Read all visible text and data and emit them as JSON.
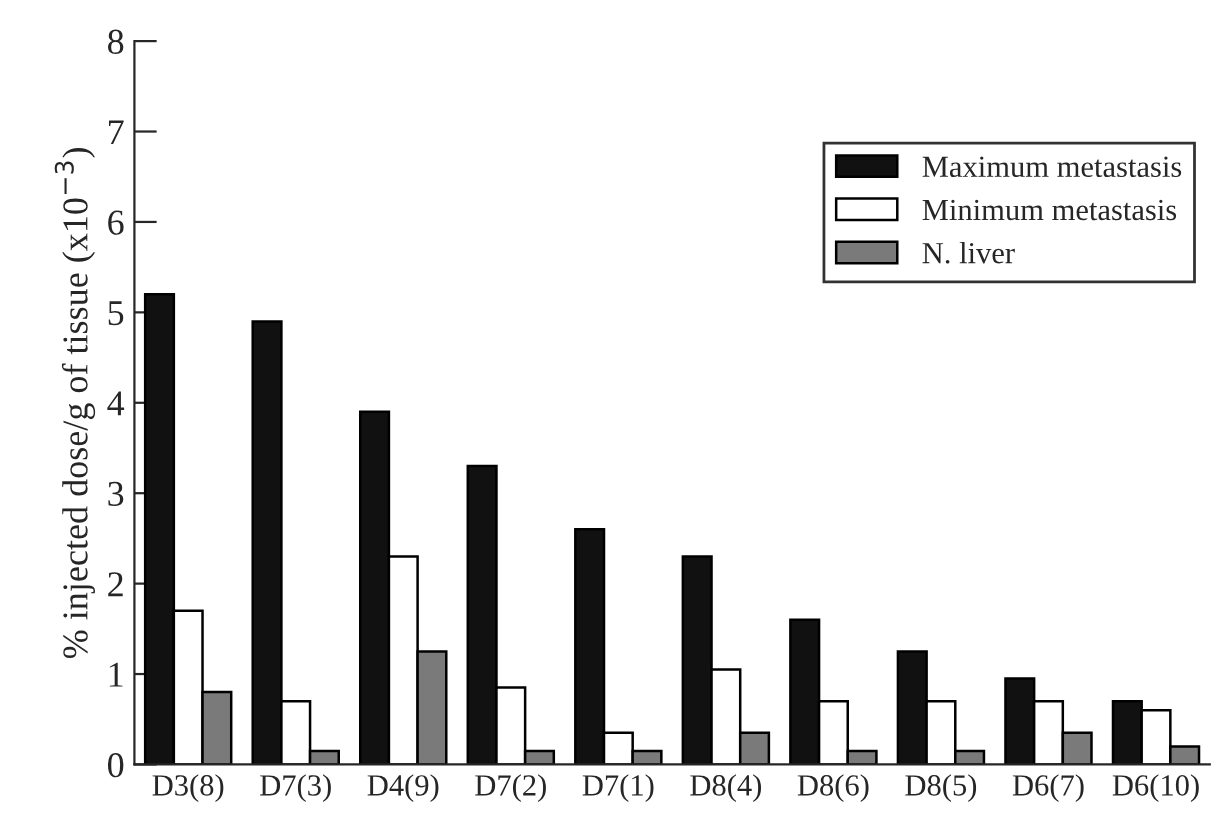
{
  "chart_data": {
    "type": "bar",
    "ylabel": "% injected dose/g of tissue (x10$^{−3}$)",
    "categories": [
      "D3(8)",
      "D7(3)",
      "D4(9)",
      "D7(2)",
      "D7(1)",
      "D8(4)",
      "D8(6)",
      "D8(5)",
      "D6(7)",
      "D6(10)"
    ],
    "series": [
      {
        "name": "Maximum metastasis",
        "color": "#111111",
        "values": [
          5.2,
          4.9,
          3.9,
          3.3,
          2.6,
          2.3,
          1.6,
          1.25,
          0.95,
          0.7
        ]
      },
      {
        "name": "Minimum metastasis",
        "color": "#ffffff",
        "values": [
          1.7,
          0.7,
          2.3,
          0.85,
          0.35,
          1.05,
          0.7,
          0.7,
          0.7,
          0.6
        ]
      },
      {
        "name": "N. liver",
        "color": "#7a7a7a",
        "values": [
          0.8,
          0.15,
          1.25,
          0.15,
          0.15,
          0.35,
          0.15,
          0.15,
          0.35,
          0.2
        ]
      }
    ],
    "ylim": [
      0,
      8
    ],
    "yticks": [
      0,
      1,
      2,
      3,
      4,
      5,
      6,
      7,
      8
    ],
    "grid": false,
    "legend": "top right"
  }
}
